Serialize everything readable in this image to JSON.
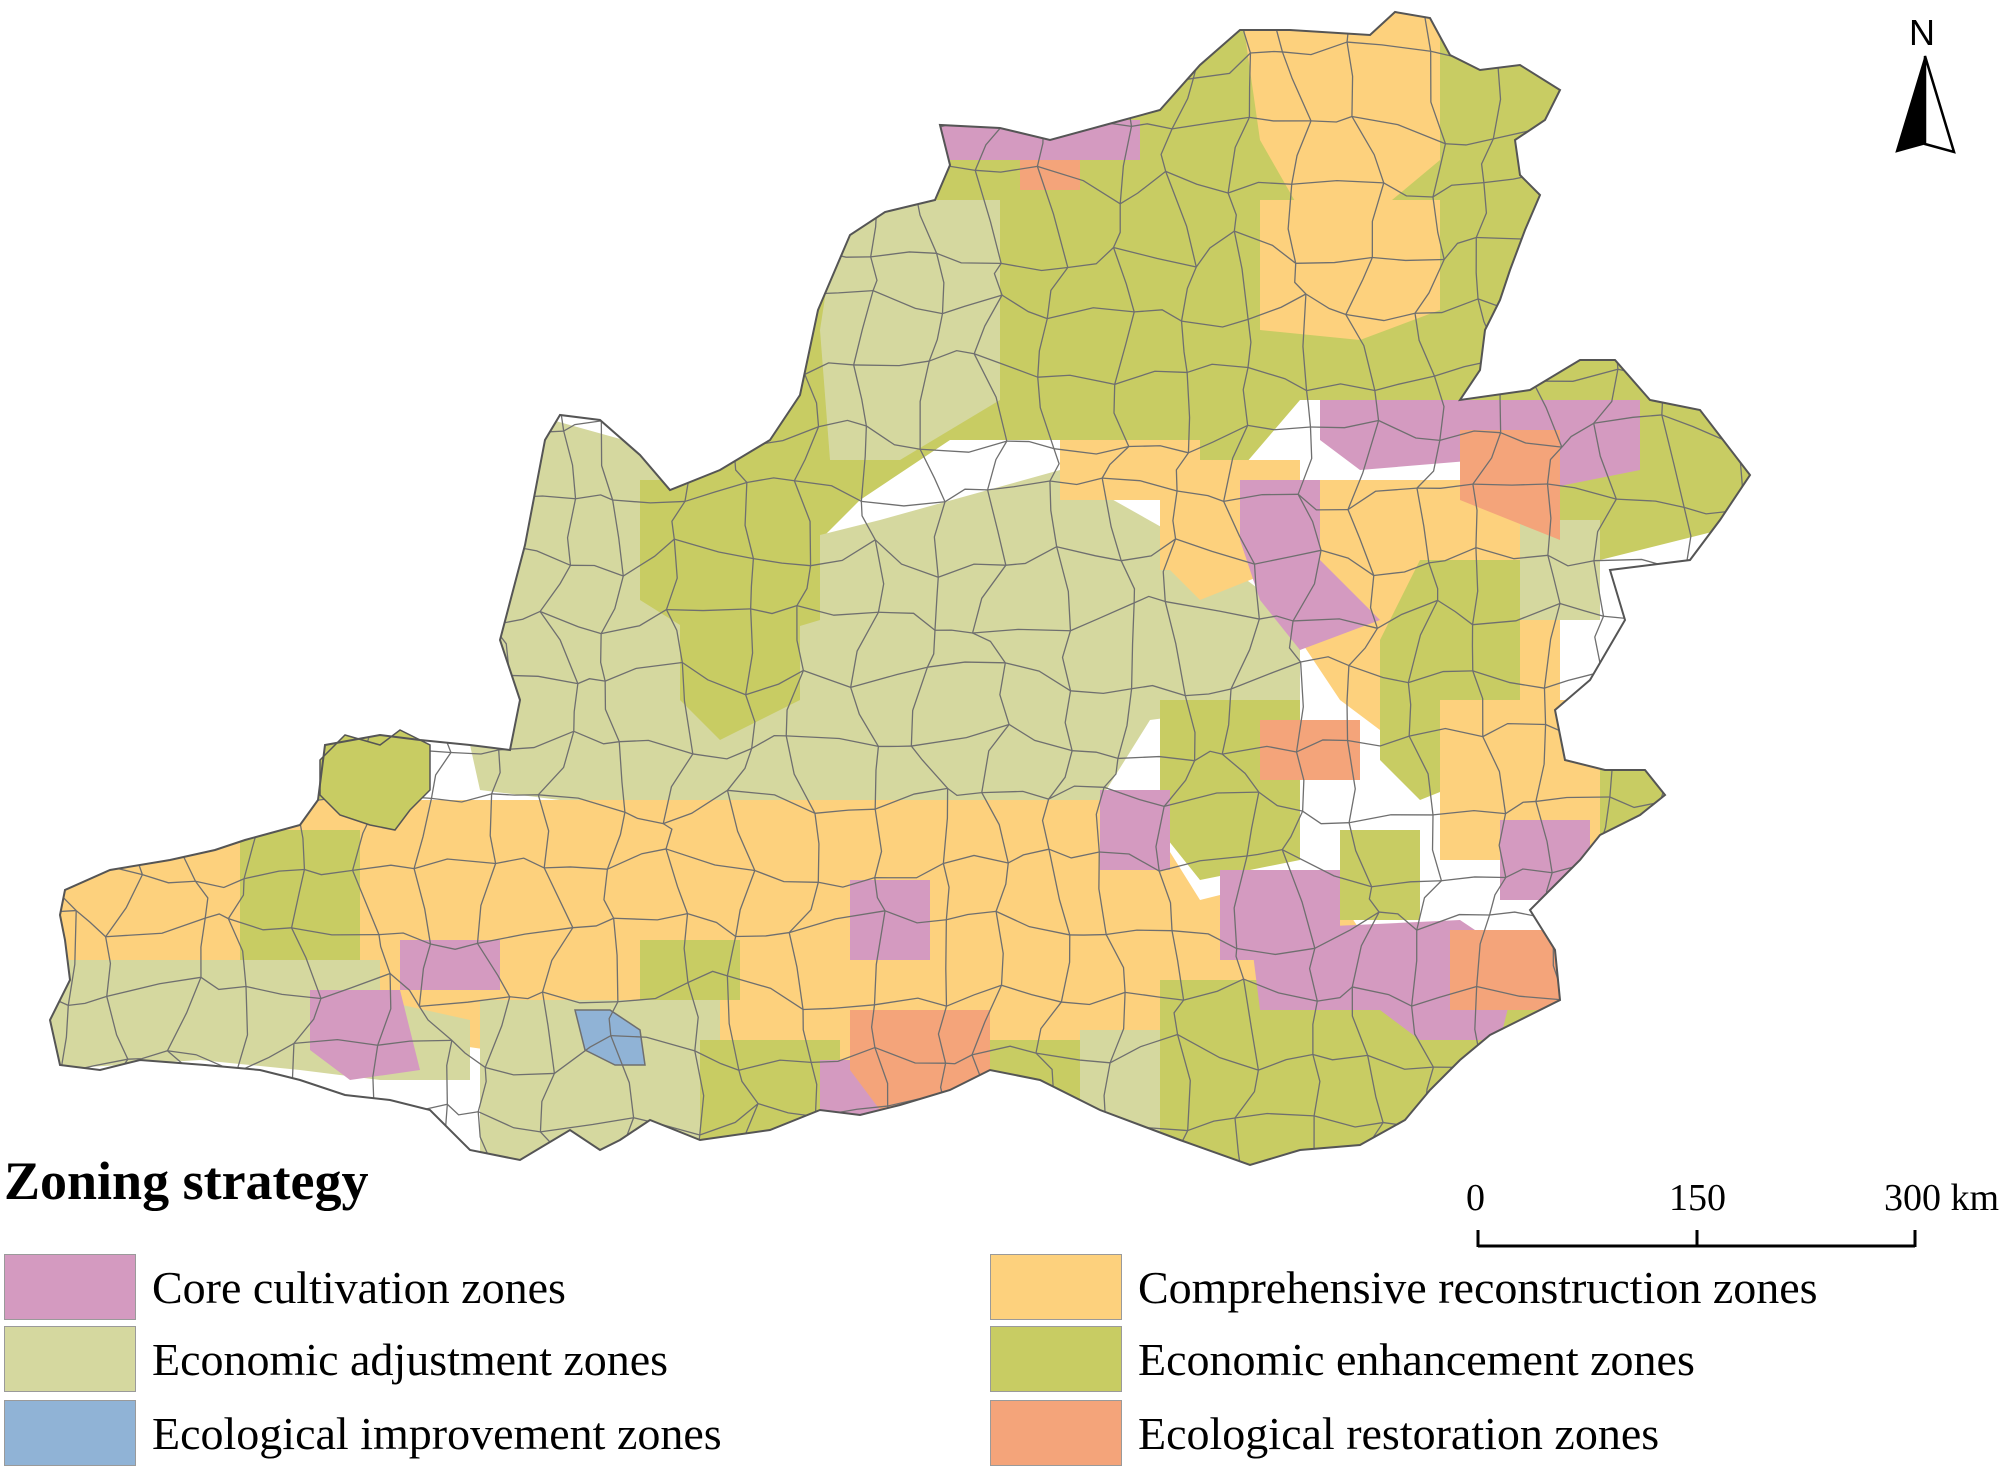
{
  "north": {
    "label": "N"
  },
  "scale": {
    "ticks": [
      "0",
      "150",
      "300 km"
    ]
  },
  "legend": {
    "title": "Zoning strategy",
    "items": [
      {
        "key": "core",
        "label": "Core cultivation zones",
        "color": "#d49ac0"
      },
      {
        "key": "comp",
        "label": "Comprehensive reconstruction zones",
        "color": "#fdd17d"
      },
      {
        "key": "econ_adj",
        "label": "Economic adjustment zones",
        "color": "#d5d89f"
      },
      {
        "key": "econ_enh",
        "label": "Economic enhancement zones",
        "color": "#c8cc63"
      },
      {
        "key": "eco_imp",
        "label": "Ecological improvement zones",
        "color": "#90b3d6"
      },
      {
        "key": "eco_res",
        "label": "Ecological restoration zones",
        "color": "#f4a47a"
      }
    ]
  },
  "map_colors": {
    "border": "#6f6f6f",
    "outline": "#555555"
  }
}
